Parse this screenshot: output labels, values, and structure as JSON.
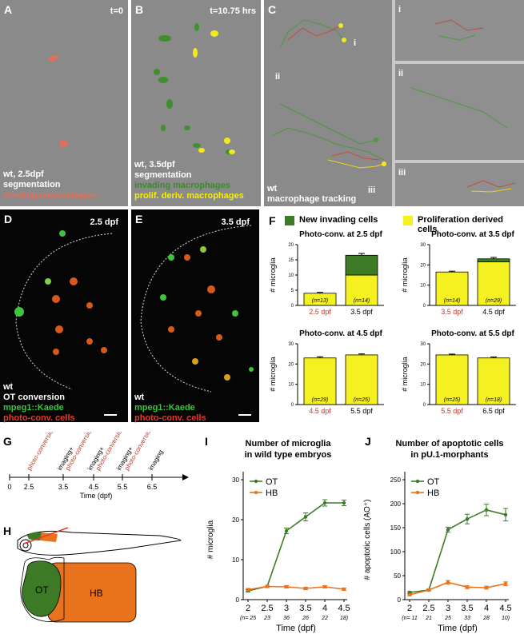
{
  "panels": {
    "A": {
      "letter": "A",
      "time": "t=0",
      "caption_white": [
        "wt, 2.5dpf",
        "segmentation"
      ],
      "caption_orange": "dividing macrophages"
    },
    "B": {
      "letter": "B",
      "time": "t=10.75 hrs",
      "caption_white": [
        "wt, 3.5dpf",
        "segmentation"
      ],
      "caption_green": "invading macrophages",
      "caption_yellow": "prolif. deriv. macrophages"
    },
    "C": {
      "letter": "C",
      "caption_white": [
        "wt",
        "macrophage tracking"
      ],
      "labels": [
        "i",
        "ii",
        "iii"
      ],
      "insets": [
        "i",
        "ii",
        "iii"
      ]
    },
    "D": {
      "letter": "D",
      "time": "2.5 dpf",
      "caption_white": [
        "wt",
        "OT conversion"
      ],
      "caption_green": "mpeg1::Kaede",
      "caption_red": "photo-conv. cells"
    },
    "E": {
      "letter": "E",
      "time": "3.5 dpf",
      "caption_white": [
        "wt"
      ],
      "caption_green": "mpeg1::Kaede",
      "caption_red": "photo-conv. cells"
    },
    "F": {
      "letter": "F",
      "legend_green": "New invading cells",
      "legend_yellow": "Proliferation derived cells"
    },
    "G": {
      "letter": "G",
      "axis_title": "Time (dpf)",
      "ticks": [
        "0",
        "2.5",
        "3.5",
        "4.5",
        "5.5",
        "6.5"
      ],
      "events": [
        {
          "text": "photo-conversion",
          "color": "#c0392b"
        },
        {
          "text": "imaging+",
          "color": "#000000"
        },
        {
          "text": "photo-conversion",
          "color": "#c0392b"
        },
        {
          "text": "imaging+",
          "color": "#000000"
        },
        {
          "text": "photo-conversion",
          "color": "#c0392b"
        },
        {
          "text": "imaging+",
          "color": "#000000"
        },
        {
          "text": "photo-conversion",
          "color": "#c0392b"
        },
        {
          "text": "imaging",
          "color": "#000000"
        }
      ]
    },
    "H": {
      "letter": "H",
      "regions": [
        "OT",
        "HB"
      ]
    },
    "I": {
      "letter": "I"
    },
    "J": {
      "letter": "J"
    }
  },
  "colors": {
    "green": "#3d7a26",
    "yellow": "#f5f020",
    "orange": "#e8731c",
    "red": "#c0392b",
    "gray": "#8a8a8a"
  },
  "chart_data": [
    {
      "panel": "F",
      "type": "bar",
      "title": "Photo-conv. at 2.5 dpf",
      "ylabel": "# microglia",
      "ylim": [
        0,
        20
      ],
      "yticks": [
        0,
        5,
        10,
        15,
        20
      ],
      "categories": [
        "2.5 dpf",
        "3.5 dpf"
      ],
      "category_colors": [
        "#c0392b",
        "#000000"
      ],
      "series": [
        {
          "name": "Proliferation derived cells",
          "values": [
            4,
            10
          ]
        },
        {
          "name": "New invading cells",
          "values": [
            0,
            6.5
          ]
        }
      ],
      "errors": [
        0.3,
        0.6
      ],
      "n_labels": [
        "(n=13)",
        "(n=14)"
      ]
    },
    {
      "panel": "F",
      "type": "bar",
      "title": "Photo-conv. at 3.5 dpf",
      "ylabel": "# microglia",
      "ylim": [
        0,
        30
      ],
      "yticks": [
        0,
        10,
        20,
        30
      ],
      "categories": [
        "3.5 dpf",
        "4.5 dpf"
      ],
      "category_colors": [
        "#c0392b",
        "#000000"
      ],
      "series": [
        {
          "name": "Proliferation derived cells",
          "values": [
            16.5,
            21.5
          ]
        },
        {
          "name": "New invading cells",
          "values": [
            0,
            1.5
          ]
        }
      ],
      "errors": [
        0.4,
        0.7
      ],
      "n_labels": [
        "(n=14)",
        "(n=29)"
      ]
    },
    {
      "panel": "F",
      "type": "bar",
      "title": "Photo-conv. at 4.5 dpf",
      "ylabel": "# microglia",
      "ylim": [
        0,
        30
      ],
      "yticks": [
        0,
        10,
        20,
        30
      ],
      "categories": [
        "4.5 dpf",
        "5.5 dpf"
      ],
      "category_colors": [
        "#c0392b",
        "#000000"
      ],
      "series": [
        {
          "name": "Proliferation derived cells",
          "values": [
            23,
            24.5
          ]
        },
        {
          "name": "New invading cells",
          "values": [
            0,
            0
          ]
        }
      ],
      "errors": [
        0.6,
        0.5
      ],
      "n_labels": [
        "(n=29)",
        "(n=25)"
      ]
    },
    {
      "panel": "F",
      "type": "bar",
      "title": "Photo-conv. at 5.5 dpf",
      "ylabel": "# microglia",
      "ylim": [
        0,
        30
      ],
      "yticks": [
        0,
        10,
        20,
        30
      ],
      "categories": [
        "5.5 dpf",
        "6.5 dpf"
      ],
      "category_colors": [
        "#c0392b",
        "#000000"
      ],
      "series": [
        {
          "name": "Proliferation derived cells",
          "values": [
            24.5,
            23
          ]
        },
        {
          "name": "New invading cells",
          "values": [
            0,
            0
          ]
        }
      ],
      "errors": [
        0.4,
        0.5
      ],
      "n_labels": [
        "(n=25)",
        "(n=18)"
      ]
    },
    {
      "panel": "I",
      "type": "line",
      "title": "Number of microglia",
      "subtitle": "in wild type embryos",
      "xlabel": "Time (dpf)",
      "ylabel": "# microglia",
      "ylim": [
        0,
        30
      ],
      "yticks": [
        0,
        10,
        20,
        30
      ],
      "x": [
        2,
        2.5,
        3,
        3.5,
        4,
        4.5
      ],
      "x_tick_labels": [
        "2",
        "2.5",
        "3",
        "3.5",
        "4",
        "4.5"
      ],
      "n_labels": [
        "(n= 25",
        "23",
        "36",
        "26",
        "22",
        "18)"
      ],
      "series": [
        {
          "name": "OT",
          "color": "#3d7a26",
          "values": [
            2.2,
            3.3,
            17.2,
            20.7,
            24.2,
            24.2
          ],
          "errors": [
            0.3,
            0.3,
            0.7,
            1.0,
            0.8,
            0.7
          ]
        },
        {
          "name": "HB",
          "color": "#e8731c",
          "values": [
            2.5,
            3.3,
            3.2,
            2.8,
            3.2,
            2.6
          ],
          "errors": [
            0.3,
            0.3,
            0.3,
            0.3,
            0.3,
            0.3
          ]
        }
      ]
    },
    {
      "panel": "J",
      "type": "line",
      "title": "Number of apoptotic cells",
      "subtitle": "in pU.1-morphants",
      "xlabel": "Time (dpf)",
      "ylabel": "# apoptotic cells (AO⁺)",
      "ylim": [
        0,
        250
      ],
      "yticks": [
        0,
        50,
        100,
        150,
        200,
        250
      ],
      "x": [
        2,
        2.5,
        3,
        3.5,
        4,
        4.5
      ],
      "x_tick_labels": [
        "2",
        "2.5",
        "3",
        "3.5",
        "4",
        "4.5"
      ],
      "n_labels": [
        "(n= 11",
        "21",
        "25",
        "33",
        "28",
        "10)"
      ],
      "series": [
        {
          "name": "OT",
          "color": "#3d7a26",
          "values": [
            15,
            20,
            146,
            168,
            187,
            177
          ],
          "errors": [
            2,
            2,
            5,
            10,
            12,
            13
          ]
        },
        {
          "name": "HB",
          "color": "#e8731c",
          "values": [
            10,
            20,
            36,
            26,
            25,
            33
          ],
          "errors": [
            2,
            2,
            4,
            3,
            3,
            4
          ]
        }
      ]
    }
  ]
}
